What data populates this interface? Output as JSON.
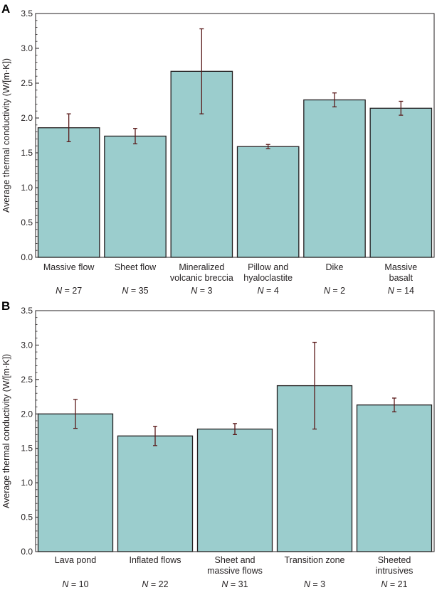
{
  "colors": {
    "bar_fill": "#9bcdcd",
    "bar_stroke": "#231f20",
    "error_bar": "#5a1a1a",
    "axis": "#231f20"
  },
  "chart_data": [
    {
      "type": "bar",
      "panel_label": "A",
      "ylabel": "Average thermal conductivity (W/[m·K])",
      "ylim": [
        0,
        3.5
      ],
      "yticks": [
        "0.0",
        "0.5",
        "1.0",
        "1.5",
        "2.0",
        "2.5",
        "3.0",
        "3.5"
      ],
      "categories": [
        [
          "Massive flow"
        ],
        [
          "Sheet flow"
        ],
        [
          "Mineralized",
          "volcanic breccia"
        ],
        [
          "Pillow and",
          "hyaloclastite"
        ],
        [
          "Dike"
        ],
        [
          "Massive",
          "basalt"
        ]
      ],
      "counts": [
        "N = 27",
        "N = 35",
        "N = 3",
        "N = 4",
        "N = 2",
        "N = 14"
      ],
      "values": [
        1.86,
        1.74,
        2.67,
        1.59,
        2.26,
        2.14
      ],
      "error": [
        0.2,
        0.11,
        0.61,
        0.03,
        0.1,
        0.1
      ]
    },
    {
      "type": "bar",
      "panel_label": "B",
      "ylabel": "Average thermal conductivity (W/[m·K])",
      "ylim": [
        0,
        3.5
      ],
      "yticks": [
        "0.0",
        "0.5",
        "1.0",
        "1.5",
        "2.0",
        "2.5",
        "3.0",
        "3.5"
      ],
      "categories": [
        [
          "Lava pond"
        ],
        [
          "Inflated flows"
        ],
        [
          "Sheet and",
          "massive flows"
        ],
        [
          "Transition zone"
        ],
        [
          "Sheeted",
          "intrusives"
        ]
      ],
      "counts": [
        "N = 10",
        "N = 22",
        "N = 31",
        "N = 3",
        "N = 21"
      ],
      "values": [
        2.0,
        1.68,
        1.78,
        2.41,
        2.13
      ],
      "error": [
        0.21,
        0.14,
        0.08,
        0.63,
        0.1
      ]
    }
  ]
}
